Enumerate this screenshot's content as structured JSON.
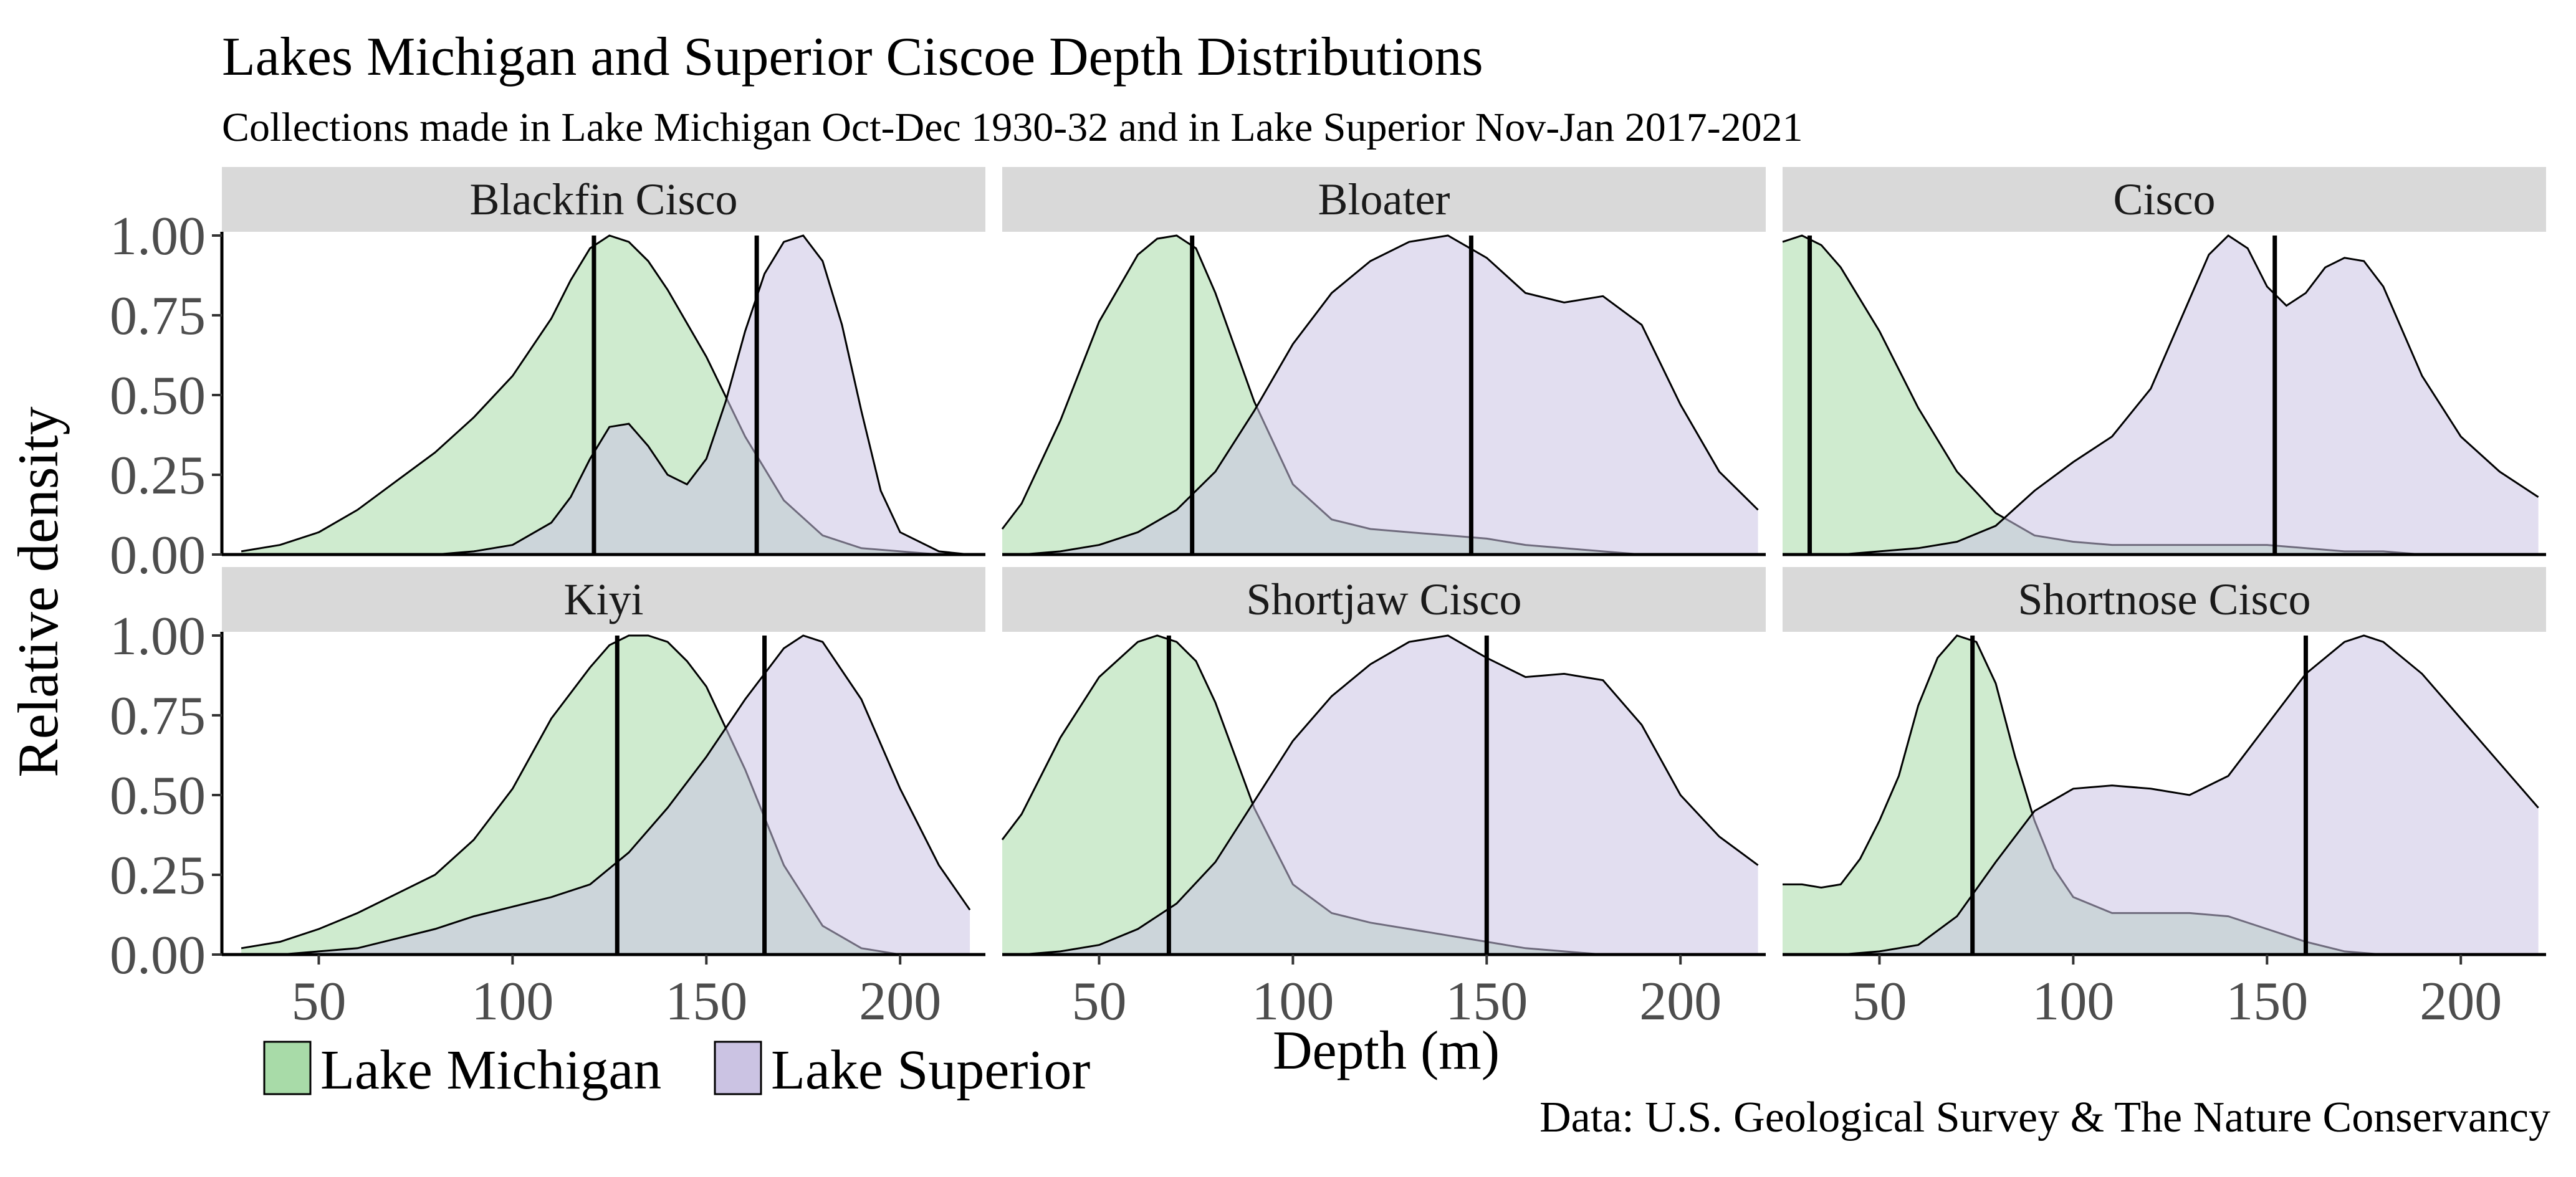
{
  "title": "Lakes Michigan and Superior Ciscoe Depth Distributions",
  "subtitle": "Collections made in Lake Michigan Oct-Dec 1930-32 and in Lake Superior Nov-Jan 2017-2021",
  "caption": "Data: U.S. Geological Survey & The Nature Conservancy",
  "chart_data": {
    "type": "area",
    "facet_layout": "2 rows x 3 columns",
    "xlabel": "Depth (m)",
    "ylabel": "Relative density",
    "xlim": [
      25,
      222
    ],
    "ylim": [
      0,
      1
    ],
    "x_ticks": [
      50,
      100,
      150,
      200
    ],
    "y_ticks": [
      "0.00",
      "0.25",
      "0.50",
      "0.75",
      "1.00"
    ],
    "grid": false,
    "legend_position": "bottom-left",
    "colors": {
      "Lake Michigan": "#a8dba8",
      "Lake Superior": "#cbc3e3",
      "outline": "#000000",
      "strip_background": "#d9d9d9"
    },
    "series": [
      {
        "name": "Lake Michigan",
        "fill": "#a8dba8"
      },
      {
        "name": "Lake Superior",
        "fill": "#cbc3e3"
      }
    ],
    "panels": [
      {
        "species": "Blackfin Cisco",
        "michigan": {
          "x": [
            30,
            40,
            50,
            60,
            70,
            80,
            90,
            100,
            110,
            115,
            120,
            125,
            130,
            135,
            140,
            150,
            160,
            170,
            180,
            190,
            200,
            210,
            218
          ],
          "y": [
            0.01,
            0.03,
            0.07,
            0.14,
            0.23,
            0.32,
            0.43,
            0.56,
            0.74,
            0.86,
            0.96,
            1.0,
            0.98,
            0.92,
            0.83,
            0.62,
            0.37,
            0.17,
            0.06,
            0.02,
            0.01,
            0.0,
            0.0
          ],
          "mean_depth": 121
        },
        "superior": {
          "x": [
            80,
            90,
            100,
            110,
            115,
            120,
            125,
            130,
            135,
            140,
            145,
            150,
            155,
            160,
            165,
            170,
            175,
            180,
            185,
            190,
            195,
            200,
            210,
            218
          ],
          "y": [
            0.0,
            0.01,
            0.03,
            0.1,
            0.18,
            0.3,
            0.4,
            0.41,
            0.34,
            0.25,
            0.22,
            0.3,
            0.48,
            0.7,
            0.88,
            0.98,
            1.0,
            0.92,
            0.72,
            0.45,
            0.2,
            0.07,
            0.01,
            0.0
          ],
          "mean_depth": 163
        }
      },
      {
        "species": "Bloater",
        "michigan": {
          "x": [
            25,
            30,
            40,
            50,
            60,
            65,
            70,
            75,
            80,
            90,
            100,
            110,
            120,
            130,
            140,
            150,
            160,
            170,
            180,
            190,
            200,
            210,
            220
          ],
          "y": [
            0.08,
            0.16,
            0.42,
            0.73,
            0.94,
            0.99,
            1.0,
            0.96,
            0.82,
            0.48,
            0.22,
            0.11,
            0.08,
            0.07,
            0.06,
            0.05,
            0.03,
            0.02,
            0.01,
            0.0,
            0.0,
            0.0,
            0.0
          ],
          "mean_depth": 74
        },
        "superior": {
          "x": [
            30,
            40,
            50,
            60,
            70,
            80,
            90,
            100,
            110,
            120,
            130,
            140,
            150,
            160,
            170,
            180,
            190,
            200,
            210,
            220
          ],
          "y": [
            0.0,
            0.01,
            0.03,
            0.07,
            0.14,
            0.26,
            0.45,
            0.66,
            0.82,
            0.92,
            0.98,
            1.0,
            0.93,
            0.82,
            0.79,
            0.81,
            0.72,
            0.47,
            0.26,
            0.14
          ],
          "mean_depth": 146
        }
      },
      {
        "species": "Cisco",
        "michigan": {
          "x": [
            25,
            30,
            35,
            40,
            50,
            60,
            70,
            80,
            90,
            100,
            110,
            120,
            130,
            140,
            150,
            160,
            170,
            180,
            190,
            200,
            210,
            220
          ],
          "y": [
            0.98,
            1.0,
            0.97,
            0.9,
            0.7,
            0.46,
            0.26,
            0.13,
            0.06,
            0.04,
            0.03,
            0.03,
            0.03,
            0.03,
            0.03,
            0.02,
            0.01,
            0.01,
            0.0,
            0.0,
            0.0,
            0.0
          ],
          "mean_depth": 32
        },
        "superior": {
          "x": [
            30,
            40,
            50,
            60,
            70,
            80,
            90,
            100,
            110,
            120,
            130,
            135,
            140,
            145,
            150,
            155,
            160,
            165,
            170,
            175,
            180,
            190,
            200,
            210,
            220
          ],
          "y": [
            0.0,
            0.0,
            0.01,
            0.02,
            0.04,
            0.09,
            0.2,
            0.29,
            0.37,
            0.52,
            0.8,
            0.94,
            1.0,
            0.96,
            0.84,
            0.78,
            0.82,
            0.9,
            0.93,
            0.92,
            0.84,
            0.56,
            0.37,
            0.26,
            0.18
          ],
          "mean_depth": 152
        }
      },
      {
        "species": "Kiyi",
        "michigan": {
          "x": [
            30,
            40,
            50,
            60,
            70,
            80,
            90,
            100,
            110,
            120,
            125,
            130,
            135,
            140,
            145,
            150,
            160,
            170,
            180,
            190,
            200,
            210,
            218
          ],
          "y": [
            0.02,
            0.04,
            0.08,
            0.13,
            0.19,
            0.25,
            0.36,
            0.52,
            0.74,
            0.9,
            0.97,
            1.0,
            1.0,
            0.98,
            0.92,
            0.84,
            0.58,
            0.28,
            0.09,
            0.02,
            0.0,
            0.0,
            0.0
          ],
          "mean_depth": 127
        },
        "superior": {
          "x": [
            30,
            40,
            50,
            60,
            70,
            80,
            90,
            100,
            110,
            120,
            130,
            140,
            150,
            160,
            165,
            170,
            175,
            180,
            190,
            200,
            210,
            218
          ],
          "y": [
            0.0,
            0.0,
            0.01,
            0.02,
            0.05,
            0.08,
            0.12,
            0.15,
            0.18,
            0.22,
            0.32,
            0.46,
            0.62,
            0.8,
            0.88,
            0.96,
            1.0,
            0.98,
            0.8,
            0.52,
            0.28,
            0.14
          ],
          "mean_depth": 165
        }
      },
      {
        "species": "Shortjaw Cisco",
        "michigan": {
          "x": [
            25,
            30,
            40,
            50,
            60,
            65,
            70,
            75,
            80,
            90,
            100,
            110,
            120,
            130,
            140,
            150,
            160,
            170,
            180,
            190,
            200,
            210,
            220
          ],
          "y": [
            0.36,
            0.44,
            0.68,
            0.87,
            0.98,
            1.0,
            0.98,
            0.92,
            0.79,
            0.46,
            0.22,
            0.13,
            0.1,
            0.08,
            0.06,
            0.04,
            0.02,
            0.01,
            0.0,
            0.0,
            0.0,
            0.0,
            0.0
          ],
          "mean_depth": 68
        },
        "superior": {
          "x": [
            30,
            40,
            50,
            60,
            70,
            80,
            90,
            100,
            110,
            120,
            130,
            140,
            150,
            160,
            170,
            180,
            190,
            200,
            210,
            220
          ],
          "y": [
            0.0,
            0.01,
            0.03,
            0.08,
            0.16,
            0.29,
            0.48,
            0.67,
            0.81,
            0.91,
            0.98,
            1.0,
            0.93,
            0.87,
            0.88,
            0.86,
            0.72,
            0.5,
            0.37,
            0.28
          ],
          "mean_depth": 150
        }
      },
      {
        "species": "Shortnose Cisco",
        "michigan": {
          "x": [
            25,
            30,
            35,
            40,
            45,
            50,
            55,
            60,
            65,
            70,
            75,
            80,
            85,
            90,
            95,
            100,
            110,
            120,
            130,
            140,
            150,
            160,
            170,
            180,
            190,
            200,
            210,
            220
          ],
          "y": [
            0.22,
            0.22,
            0.21,
            0.22,
            0.3,
            0.42,
            0.56,
            0.78,
            0.93,
            1.0,
            0.98,
            0.85,
            0.62,
            0.42,
            0.27,
            0.18,
            0.13,
            0.13,
            0.13,
            0.12,
            0.08,
            0.04,
            0.01,
            0.0,
            0.0,
            0.0,
            0.0,
            0.0
          ],
          "mean_depth": 74
        },
        "superior": {
          "x": [
            30,
            40,
            50,
            60,
            70,
            80,
            90,
            100,
            110,
            120,
            130,
            140,
            150,
            160,
            170,
            175,
            180,
            190,
            200,
            210,
            220
          ],
          "y": [
            0.0,
            0.0,
            0.01,
            0.03,
            0.12,
            0.29,
            0.45,
            0.52,
            0.53,
            0.52,
            0.5,
            0.56,
            0.72,
            0.88,
            0.98,
            1.0,
            0.98,
            0.88,
            0.74,
            0.6,
            0.46
          ],
          "mean_depth": 160
        }
      }
    ]
  }
}
